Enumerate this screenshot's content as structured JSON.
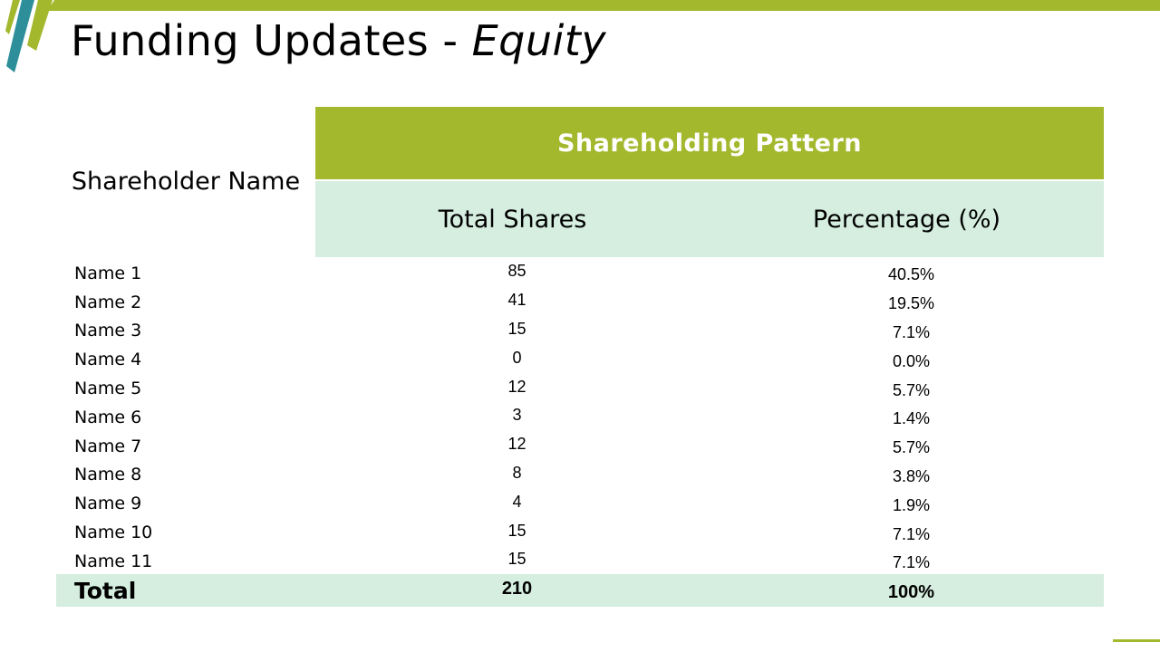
{
  "title": {
    "main": "Funding Updates - ",
    "italic": "Equity"
  },
  "table": {
    "name_header": "Shareholder Name",
    "pattern_header": "Shareholding Pattern",
    "shares_header": "Total Shares",
    "percentage_header": "Percentage  (%)",
    "rows": [
      {
        "name": "Name 1",
        "shares": "85",
        "percentage": "40.5%"
      },
      {
        "name": "Name 2",
        "shares": "41",
        "percentage": "19.5%"
      },
      {
        "name": "Name 3",
        "shares": "15",
        "percentage": "7.1%"
      },
      {
        "name": "Name 4",
        "shares": "0",
        "percentage": "0.0%"
      },
      {
        "name": "Name 5",
        "shares": "12",
        "percentage": "5.7%"
      },
      {
        "name": "Name 6",
        "shares": "3",
        "percentage": "1.4%"
      },
      {
        "name": "Name 7",
        "shares": "12",
        "percentage": "5.7%"
      },
      {
        "name": "Name 8",
        "shares": "8",
        "percentage": "3.8%"
      },
      {
        "name": "Name 9",
        "shares": "4",
        "percentage": "1.9%"
      },
      {
        "name": "Name 10",
        "shares": "15",
        "percentage": "7.1%"
      },
      {
        "name": "Name 11",
        "shares": "15",
        "percentage": "7.1%"
      }
    ],
    "total": {
      "label": "Total",
      "shares": "210",
      "percentage": "100%"
    }
  },
  "colors": {
    "accent_green": "#a3b82c",
    "light_green": "#d5eee0",
    "accent_teal": "#2e8f9a"
  }
}
